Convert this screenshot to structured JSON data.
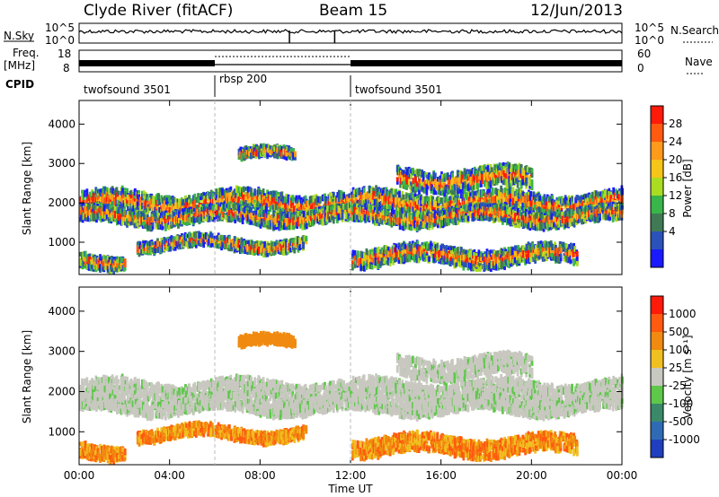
{
  "header": {
    "station": "Clyde River (fitACF)",
    "beam": "Beam 15",
    "date": "12/Jun/2013"
  },
  "params": {
    "nsky_label": "N.Sky",
    "nsky_ticks": [
      "10^5",
      "10^0"
    ],
    "nsearch_label": "N.Search",
    "nsearch_ticks": [
      "10^5",
      "10^0"
    ],
    "freq_label_1": "Freq.",
    "freq_label_2": "[MHz]",
    "freq_ticks": [
      "18",
      "8"
    ],
    "nave_label": "Nave",
    "nave_ticks": [
      "60",
      "0"
    ],
    "cpid_label": "CPID"
  },
  "cpid_segments": [
    {
      "name": "twofsound 3501",
      "start_hour": 0,
      "end_hour": 6
    },
    {
      "name": "rbsp 200",
      "start_hour": 6,
      "end_hour": 12
    },
    {
      "name": "twofsound 3501",
      "start_hour": 12,
      "end_hour": 24
    }
  ],
  "chart_data": [
    {
      "type": "heatmap",
      "panel": "power",
      "ylabel": "Slant Range [km]",
      "ylim": [
        180,
        4600
      ],
      "xlim": [
        0,
        24
      ],
      "x_ticks": [
        "00:00",
        "04:00",
        "08:00",
        "12:00",
        "16:00",
        "20:00",
        "00:00"
      ],
      "y_ticks": [
        1000,
        2000,
        3000,
        4000
      ],
      "colorbar_label": "Power [dB]",
      "colorbar_ticks": [
        "28",
        "24",
        "20",
        "16",
        "12",
        "8",
        "4"
      ],
      "colorbar_colors": [
        "#1a1aff",
        "#2a52b8",
        "#3f7a55",
        "#39b54a",
        "#aadd22",
        "#f5c518",
        "#ff9a1a",
        "#ff5a10",
        "#ff1a0a"
      ],
      "power_range_db": [
        0,
        32
      ]
    },
    {
      "type": "heatmap",
      "panel": "velocity",
      "ylabel": "Slant Range [km]",
      "ylim": [
        180,
        4600
      ],
      "xlim": [
        0,
        24
      ],
      "xlabel": "Time UT",
      "x_ticks": [
        "00:00",
        "04:00",
        "08:00",
        "12:00",
        "16:00",
        "20:00",
        "00:00"
      ],
      "y_ticks": [
        1000,
        2000,
        3000,
        4000
      ],
      "colorbar_label": "Velocity [m s⁻¹]",
      "colorbar_ticks": [
        "1000",
        "500",
        "100",
        "25",
        "-25",
        "-100",
        "-500",
        "-1000"
      ],
      "colorbar_colors": [
        "#1f3fbf",
        "#2f6bb5",
        "#3a8a6a",
        "#5ec84a",
        "#c8c8c0",
        "#f0c020",
        "#f08a10",
        "#ff5a10",
        "#ff1a0a"
      ]
    }
  ]
}
